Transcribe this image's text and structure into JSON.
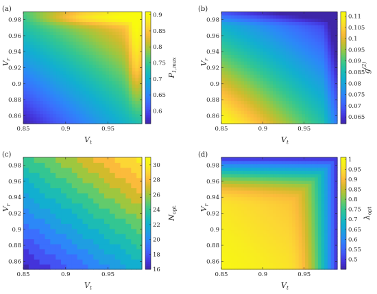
{
  "figure": {
    "x_axis_label": "V_t",
    "y_axis_label": "V_r"
  },
  "colormap": [
    "#3e26a8",
    "#4433da",
    "#4453f4",
    "#3b6ffd",
    "#2c88f8",
    "#1f9ee2",
    "#12afd0",
    "#1cbcb4",
    "#33c692",
    "#62cb6c",
    "#9ec73f",
    "#d2bb2c",
    "#fbbb3b",
    "#fcd634",
    "#f8ee1e",
    "#f9fb0e"
  ],
  "chart_data": [
    {
      "type": "heatmap",
      "panel_label": "(a)",
      "colorbar_label": "P_{1,max}",
      "x": [
        0.85,
        0.99
      ],
      "y": [
        0.85,
        0.99
      ],
      "xticks": [
        "0.85",
        "0.9",
        "0.95"
      ],
      "yticks": [
        "0.86",
        "0.88",
        "0.9",
        "0.92",
        "0.94",
        "0.96",
        "0.98"
      ],
      "clim": [
        0.56,
        0.91
      ],
      "cticks": [
        "0.6",
        "0.65",
        "0.7",
        "0.75",
        "0.8",
        "0.85",
        "0.9"
      ],
      "corner_values": {
        "bottom_left": 0.56,
        "bottom_right": 0.73,
        "top_left": 0.76,
        "top_right": 0.88
      }
    },
    {
      "type": "heatmap",
      "panel_label": "(b)",
      "colorbar_label": "g^{(2)}",
      "x": [
        0.85,
        0.99
      ],
      "y": [
        0.85,
        0.99
      ],
      "xticks": [
        "0.85",
        "0.9",
        "0.95"
      ],
      "yticks": [
        "0.86",
        "0.88",
        "0.9",
        "0.92",
        "0.94",
        "0.96",
        "0.98"
      ],
      "clim": [
        0.062,
        0.112
      ],
      "cticks": [
        "0.065",
        "0.07",
        "0.075",
        "0.08",
        "0.085",
        "0.09",
        "0.095",
        "0.1",
        "0.105",
        "0.11"
      ],
      "corner_values": {
        "bottom_left": 0.112,
        "bottom_right": 0.083,
        "top_left": 0.078,
        "top_right": 0.063
      }
    },
    {
      "type": "heatmap",
      "panel_label": "(c)",
      "colorbar_label": "N_{opt}",
      "x": [
        0.85,
        0.99
      ],
      "y": [
        0.85,
        0.99
      ],
      "xticks": [
        "0.85",
        "0.9",
        "0.95"
      ],
      "yticks": [
        "0.86",
        "0.88",
        "0.9",
        "0.92",
        "0.94",
        "0.96",
        "0.98"
      ],
      "clim": [
        16,
        31
      ],
      "cticks": [
        "16",
        "18",
        "20",
        "22",
        "24",
        "26",
        "28",
        "30"
      ],
      "discrete": true,
      "corner_values": {
        "bottom_left": 16,
        "bottom_right": 22,
        "top_left": 24,
        "top_right": 30
      }
    },
    {
      "type": "heatmap",
      "panel_label": "(d)",
      "colorbar_label": "λ_{opt}",
      "x": [
        0.85,
        0.99
      ],
      "y": [
        0.85,
        0.99
      ],
      "xticks": [
        "0.85",
        "0.9",
        "0.95"
      ],
      "yticks": [
        "0.86",
        "0.88",
        "0.9",
        "0.92",
        "0.94",
        "0.96",
        "0.98"
      ],
      "clim": [
        0.45,
        1.01
      ],
      "cticks": [
        "0.5",
        "0.55",
        "0.6",
        "0.65",
        "0.7",
        "0.75",
        "0.8",
        "0.85",
        "0.9",
        "0.95",
        "1"
      ],
      "corner_values": {
        "bottom_left": 1.0,
        "bottom_right": 0.86,
        "top_left": 0.84,
        "top_right": 0.47
      }
    }
  ]
}
